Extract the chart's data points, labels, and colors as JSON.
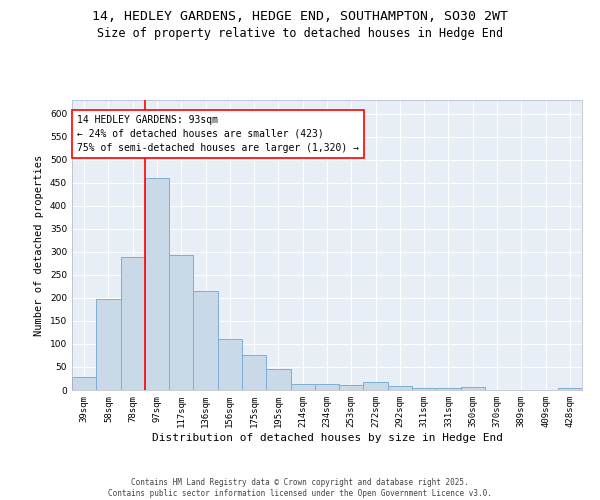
{
  "title_line1": "14, HEDLEY GARDENS, HEDGE END, SOUTHAMPTON, SO30 2WT",
  "title_line2": "Size of property relative to detached houses in Hedge End",
  "xlabel": "Distribution of detached houses by size in Hedge End",
  "ylabel": "Number of detached properties",
  "categories": [
    "39sqm",
    "58sqm",
    "78sqm",
    "97sqm",
    "117sqm",
    "136sqm",
    "156sqm",
    "175sqm",
    "195sqm",
    "214sqm",
    "234sqm",
    "253sqm",
    "272sqm",
    "292sqm",
    "311sqm",
    "331sqm",
    "350sqm",
    "370sqm",
    "389sqm",
    "409sqm",
    "428sqm"
  ],
  "values": [
    28,
    197,
    290,
    460,
    293,
    215,
    110,
    75,
    45,
    12,
    12,
    11,
    18,
    9,
    5,
    5,
    6,
    0,
    0,
    0,
    4
  ],
  "bar_color": "#c9d9e8",
  "bar_edge_color": "#7bafd4",
  "bg_color": "#e8eef5",
  "vline_color": "red",
  "vline_x_index": 2.5,
  "annotation_title": "14 HEDLEY GARDENS: 93sqm",
  "annotation_line2": "← 24% of detached houses are smaller (423)",
  "annotation_line3": "75% of semi-detached houses are larger (1,320) →",
  "annotation_box_color": "red",
  "ylim": [
    0,
    630
  ],
  "yticks": [
    0,
    50,
    100,
    150,
    200,
    250,
    300,
    350,
    400,
    450,
    500,
    550,
    600
  ],
  "footnote": "Contains HM Land Registry data © Crown copyright and database right 2025.\nContains public sector information licensed under the Open Government Licence v3.0.",
  "title_fontsize": 9.5,
  "subtitle_fontsize": 8.5,
  "xlabel_fontsize": 8,
  "ylabel_fontsize": 7.5,
  "tick_fontsize": 6.5,
  "annotation_fontsize": 7,
  "footnote_fontsize": 5.5
}
